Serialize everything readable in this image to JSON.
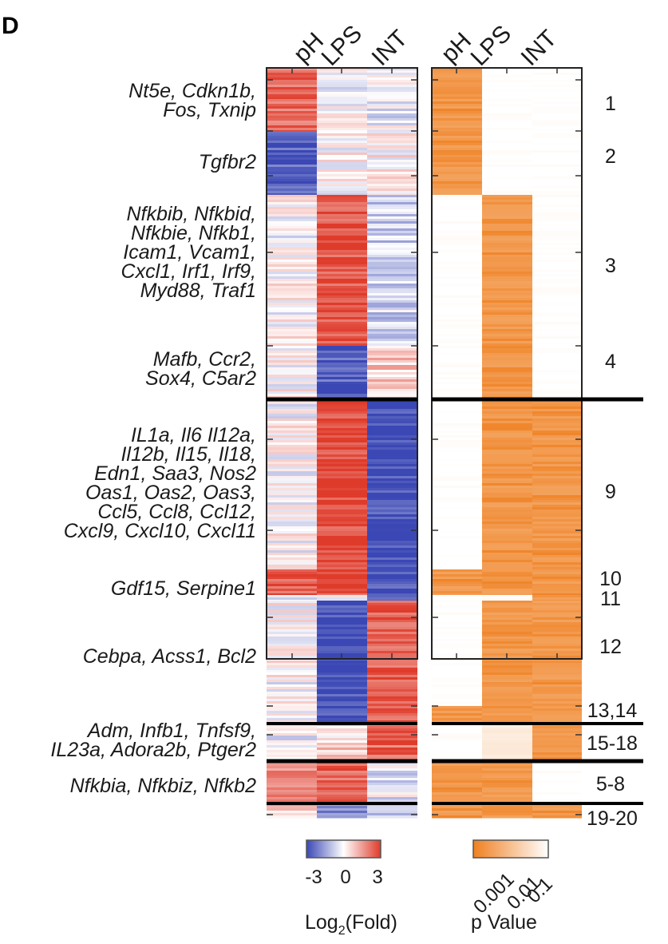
{
  "panel_label": "D",
  "chart_data": [
    {
      "type": "heatmap",
      "name": "fold_change",
      "columns": [
        "pH",
        "LPS",
        "INT"
      ],
      "color_scale": {
        "min": -3,
        "mid": 0,
        "max": 3,
        "low": "#3a47b4",
        "midcolor": "#ffffff",
        "high": "#df3b2b"
      },
      "rows": [
        {
          "cluster": "1",
          "rows": 12,
          "values": [
            2.3,
            -0.1,
            -0.3
          ]
        },
        {
          "cluster": "2",
          "rows": 11,
          "values": [
            -2.6,
            0.1,
            0.1
          ]
        },
        {
          "cluster": "3",
          "rows": 28,
          "values": [
            0.0,
            2.6,
            -0.7
          ]
        },
        {
          "cluster": "4",
          "rows": 12,
          "values": [
            0.1,
            -2.6,
            0.8
          ]
        },
        {
          "cluster": "9",
          "rows": 31,
          "values": [
            0.0,
            2.8,
            -2.9
          ]
        },
        {
          "cluster": "10",
          "rows": 5,
          "values": [
            2.6,
            2.8,
            -2.9
          ]
        },
        {
          "cluster": "11",
          "rows": 1,
          "values": [
            0.0,
            0.0,
            -2.5
          ]
        },
        {
          "cluster": "12",
          "rows": 19,
          "values": [
            0.0,
            -2.9,
            2.5
          ]
        },
        {
          "cluster": "13,14",
          "rows": 3,
          "values": [
            0.0,
            -2.9,
            2.5
          ]
        },
        {
          "cluster": "15-18",
          "rows": 8,
          "values": [
            -0.3,
            0.6,
            2.3
          ]
        },
        {
          "cluster": "5-8",
          "rows": 8,
          "values": [
            1.8,
            2.4,
            -0.3
          ]
        },
        {
          "cluster": "19-20",
          "rows": 3,
          "values": [
            0.8,
            -2.0,
            -1.0
          ]
        }
      ]
    },
    {
      "type": "heatmap",
      "name": "p_value",
      "columns": [
        "pH",
        "LPS",
        "INT"
      ],
      "color_scale": {
        "ticks": [
          0.001,
          0.01,
          0.1
        ],
        "low": "#ef8021",
        "high": "#ffffff",
        "scale": "log"
      },
      "rows": [
        {
          "cluster": "1",
          "values": [
            0.002,
            0.1,
            0.1
          ]
        },
        {
          "cluster": "2",
          "values": [
            0.002,
            0.1,
            0.1
          ]
        },
        {
          "cluster": "3",
          "values": [
            0.1,
            0.002,
            0.1
          ]
        },
        {
          "cluster": "4",
          "values": [
            0.1,
            0.002,
            0.1
          ]
        },
        {
          "cluster": "9",
          "values": [
            0.1,
            0.002,
            0.002
          ]
        },
        {
          "cluster": "10",
          "values": [
            0.002,
            0.002,
            0.002
          ]
        },
        {
          "cluster": "11",
          "values": [
            0.1,
            0.1,
            0.002
          ]
        },
        {
          "cluster": "12",
          "values": [
            0.1,
            0.002,
            0.002
          ]
        },
        {
          "cluster": "13,14",
          "values": [
            0.002,
            0.002,
            0.002
          ]
        },
        {
          "cluster": "15-18",
          "values": [
            0.1,
            0.05,
            0.002
          ]
        },
        {
          "cluster": "5-8",
          "values": [
            0.002,
            0.002,
            0.1
          ]
        },
        {
          "cluster": "19-20",
          "values": [
            0.002,
            0.002,
            0.002
          ]
        }
      ]
    }
  ],
  "gene_labels": [
    [
      "Nt5e, Cdkn1b,",
      "Fos, Txnip"
    ],
    [
      "Tgfbr2"
    ],
    [
      "Nfkbib, Nfkbid,",
      "Nfkbie, Nfkb1,",
      "Icam1, Vcam1,",
      "Cxcl1, Irf1, Irf9,",
      "Myd88, Traf1"
    ],
    [
      "Mafb, Ccr2,",
      "Sox4, C5ar2"
    ],
    [
      "IL1a, Il6 Il12a,",
      "Il12b, Il15, Il18,",
      "Edn1, Saa3, Nos2",
      "Oas1, Oas2, Oas3,",
      "Ccl5, Ccl8, Ccl12,",
      "Cxcl9, Cxcl10, Cxcl11"
    ],
    [
      "Gdf15, Serpine1"
    ],
    [
      "Cebpa, Acss1, Bcl2"
    ],
    [
      "Adm, Infb1, Tnfsf9,",
      "IL23a, Adora2b, Ptger2"
    ],
    [
      "Nfkbia, Nfkbiz, Nfkb2"
    ]
  ],
  "cluster_labels": [
    "1",
    "2",
    "3",
    "4",
    "9",
    "10",
    "11",
    "12",
    "13,14",
    "15-18",
    "5-8",
    "19-20"
  ],
  "legend_fold": {
    "title": "Log",
    "title_sub": "2",
    "title_tail": "(Fold)",
    "ticks": [
      "-3",
      "0",
      "3"
    ]
  },
  "legend_p": {
    "title": "p Value",
    "ticks": [
      "0.001",
      "0.01",
      "0.1"
    ]
  }
}
